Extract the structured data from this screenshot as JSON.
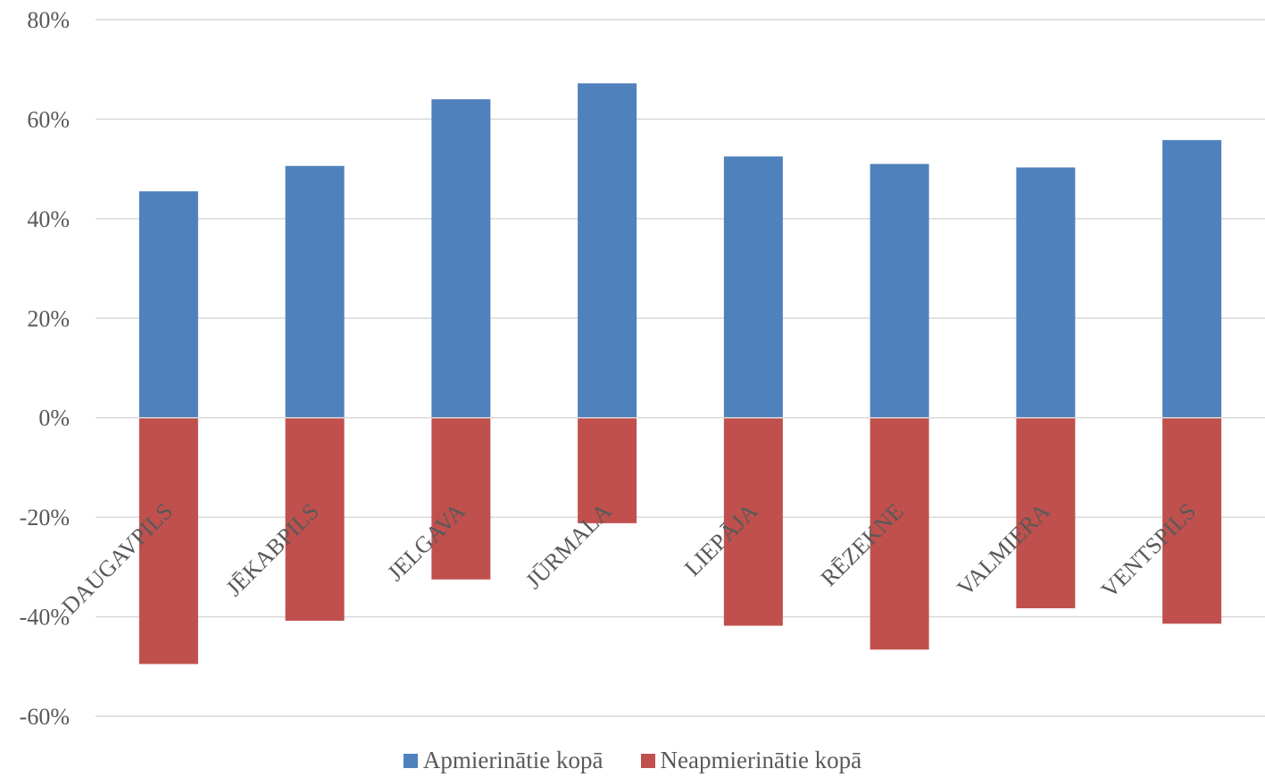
{
  "chart_data": {
    "type": "bar",
    "stacked": true,
    "categories": [
      "DAUGAVPILS",
      "JĒKABPILS",
      "JELGAVA",
      "JŪRMALA",
      "LIEPĀJA",
      "RĒZEKNE",
      "VALMIERA",
      "VENTSPILS"
    ],
    "series": [
      {
        "name": "Apmierinātie kopā",
        "color": "#4f81bd",
        "values": [
          45.5,
          50.6,
          64.0,
          67.2,
          52.5,
          51.0,
          50.3,
          55.8
        ]
      },
      {
        "name": "Neapmierinātie kopā",
        "color": "#c0504d",
        "values": [
          -49.5,
          -40.8,
          -32.5,
          -21.2,
          -41.8,
          -46.6,
          -38.3,
          -41.4
        ]
      }
    ],
    "yticks": [
      "80%",
      "60%",
      "40%",
      "20%",
      "0%",
      "-20%",
      "-40%",
      "-60%"
    ],
    "ylim": [
      -60,
      80
    ],
    "grid": true,
    "legend_position": "bottom",
    "title": "",
    "xlabel": "",
    "ylabel": ""
  }
}
